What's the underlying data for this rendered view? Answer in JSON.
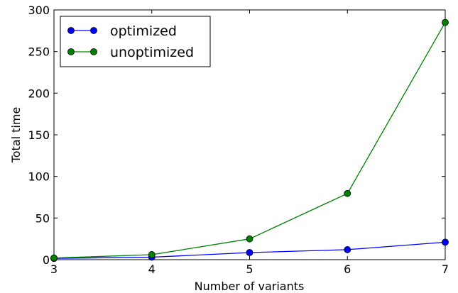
{
  "chart_data": {
    "type": "line",
    "xlabel": "Number of variants",
    "ylabel": "Total time",
    "x": [
      3,
      4,
      5,
      6,
      7
    ],
    "xlim": [
      3,
      7
    ],
    "ylim": [
      0,
      300
    ],
    "x_ticks": [
      "3",
      "4",
      "5",
      "6",
      "7"
    ],
    "y_ticks": [
      "0",
      "50",
      "100",
      "150",
      "200",
      "250",
      "300"
    ],
    "grid": false,
    "legend_position": "top-left",
    "series": [
      {
        "name": "optimized",
        "color": "#0000ff",
        "values": [
          1.5,
          3,
          8.5,
          12,
          21
        ]
      },
      {
        "name": "unoptimized",
        "color": "#008000",
        "values": [
          2,
          6,
          25,
          79.5,
          285
        ]
      }
    ]
  }
}
